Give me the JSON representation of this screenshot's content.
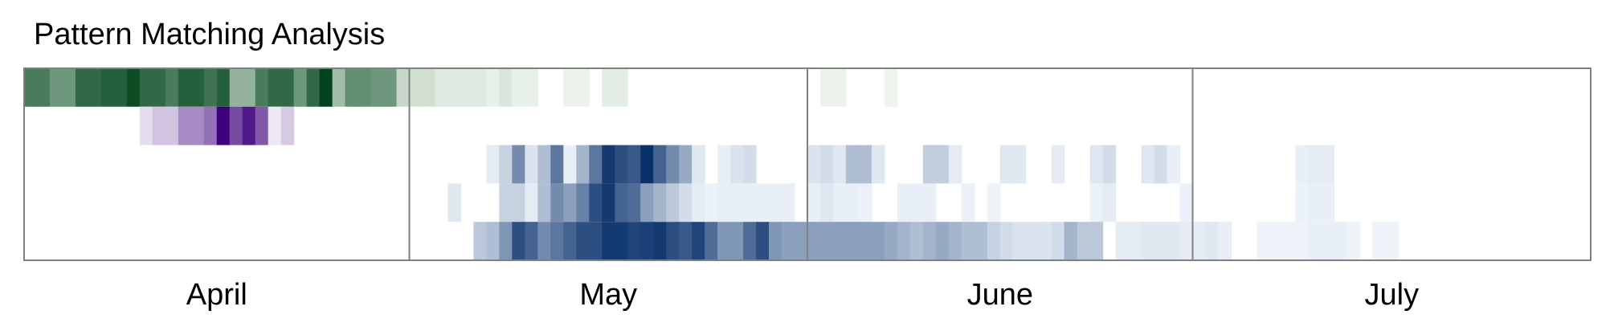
{
  "chart_data": {
    "type": "heatmap",
    "title": "Pattern Matching Analysis",
    "x_start": "2024-04-01",
    "x_end": "2024-07-31",
    "month_labels": [
      "April",
      "May",
      "June",
      "July"
    ],
    "month_boundaries": [
      "2024-05-01",
      "2024-06-01",
      "2024-07-01"
    ],
    "colormaps": {
      "greens": [
        "#f7fcf5",
        "#00441b"
      ],
      "purples": [
        "#fcfbfd",
        "#3f007d"
      ],
      "blues": [
        "#f7fbff",
        "#08306b"
      ]
    },
    "rows": [
      {
        "colormap": "greens",
        "cells": [
          [
            "2024-04-01",
            0.7
          ],
          [
            "2024-04-02",
            0.7
          ],
          [
            "2024-04-03",
            0.55
          ],
          [
            "2024-04-04",
            0.55
          ],
          [
            "2024-04-05",
            0.8
          ],
          [
            "2024-04-06",
            0.8
          ],
          [
            "2024-04-07",
            0.85
          ],
          [
            "2024-04-08",
            0.85
          ],
          [
            "2024-04-09",
            0.95
          ],
          [
            "2024-04-10",
            0.8
          ],
          [
            "2024-04-11",
            0.8
          ],
          [
            "2024-04-12",
            0.7
          ],
          [
            "2024-04-13",
            0.85
          ],
          [
            "2024-04-14",
            0.85
          ],
          [
            "2024-04-15",
            0.75
          ],
          [
            "2024-04-16",
            0.85
          ],
          [
            "2024-04-17",
            0.4
          ],
          [
            "2024-04-18",
            0.4
          ],
          [
            "2024-04-19",
            0.7
          ],
          [
            "2024-04-20",
            0.8
          ],
          [
            "2024-04-21",
            0.8
          ],
          [
            "2024-04-22",
            0.55
          ],
          [
            "2024-04-23",
            0.8
          ],
          [
            "2024-04-24",
            1.0
          ],
          [
            "2024-04-25",
            0.35
          ],
          [
            "2024-04-26",
            0.6
          ],
          [
            "2024-04-27",
            0.6
          ],
          [
            "2024-04-28",
            0.55
          ],
          [
            "2024-04-29",
            0.55
          ],
          [
            "2024-04-30",
            0.2
          ],
          [
            "2024-05-01",
            0.15
          ],
          [
            "2024-05-02",
            0.15
          ],
          [
            "2024-05-03",
            0.1
          ],
          [
            "2024-05-04",
            0.1
          ],
          [
            "2024-05-05",
            0.1
          ],
          [
            "2024-05-06",
            0.1
          ],
          [
            "2024-05-07",
            0.06
          ],
          [
            "2024-05-08",
            0.12
          ],
          [
            "2024-05-09",
            0.06
          ],
          [
            "2024-05-10",
            0.06
          ],
          [
            "2024-05-13",
            0.05
          ],
          [
            "2024-05-14",
            0.05
          ],
          [
            "2024-05-16",
            0.08
          ],
          [
            "2024-05-17",
            0.08
          ],
          [
            "2024-06-02",
            0.05
          ],
          [
            "2024-06-03",
            0.05
          ],
          [
            "2024-06-07",
            0.04
          ]
        ]
      },
      {
        "colormap": "purples",
        "cells": [
          [
            "2024-04-10",
            0.12
          ],
          [
            "2024-04-11",
            0.22
          ],
          [
            "2024-04-12",
            0.22
          ],
          [
            "2024-04-13",
            0.45
          ],
          [
            "2024-04-14",
            0.45
          ],
          [
            "2024-04-15",
            0.55
          ],
          [
            "2024-04-16",
            1.0
          ],
          [
            "2024-04-17",
            0.7
          ],
          [
            "2024-04-18",
            0.9
          ],
          [
            "2024-04-19",
            0.65
          ],
          [
            "2024-04-20",
            0.08
          ],
          [
            "2024-04-21",
            0.2
          ]
        ]
      },
      {
        "colormap": "blues",
        "cells": [
          [
            "2024-05-07",
            0.08
          ],
          [
            "2024-05-08",
            0.2
          ],
          [
            "2024-05-09",
            0.55
          ],
          [
            "2024-05-10",
            0.12
          ],
          [
            "2024-05-11",
            0.3
          ],
          [
            "2024-05-12",
            0.65
          ],
          [
            "2024-05-13",
            0.06
          ],
          [
            "2024-05-14",
            0.35
          ],
          [
            "2024-05-15",
            0.65
          ],
          [
            "2024-05-16",
            0.95
          ],
          [
            "2024-05-17",
            0.85
          ],
          [
            "2024-05-18",
            0.8
          ],
          [
            "2024-05-19",
            1.0
          ],
          [
            "2024-05-20",
            0.75
          ],
          [
            "2024-05-21",
            0.55
          ],
          [
            "2024-05-22",
            0.4
          ],
          [
            "2024-05-23",
            0.1
          ],
          [
            "2024-05-25",
            0.06
          ],
          [
            "2024-05-26",
            0.12
          ],
          [
            "2024-05-27",
            0.15
          ],
          [
            "2024-06-01",
            0.12
          ],
          [
            "2024-06-02",
            0.15
          ],
          [
            "2024-06-03",
            0.1
          ],
          [
            "2024-06-04",
            0.3
          ],
          [
            "2024-06-05",
            0.3
          ],
          [
            "2024-06-06",
            0.1
          ],
          [
            "2024-06-10",
            0.22
          ],
          [
            "2024-06-11",
            0.22
          ],
          [
            "2024-06-12",
            0.08
          ],
          [
            "2024-06-16",
            0.1
          ],
          [
            "2024-06-17",
            0.1
          ],
          [
            "2024-06-20",
            0.08
          ],
          [
            "2024-06-23",
            0.1
          ],
          [
            "2024-06-24",
            0.15
          ],
          [
            "2024-06-27",
            0.1
          ],
          [
            "2024-06-28",
            0.15
          ],
          [
            "2024-06-29",
            0.06
          ],
          [
            "2024-07-09",
            0.06
          ],
          [
            "2024-07-10",
            0.08
          ],
          [
            "2024-07-11",
            0.08
          ]
        ]
      },
      {
        "colormap": "blues",
        "cells": [
          [
            "2024-05-04",
            0.1
          ],
          [
            "2024-05-08",
            0.2
          ],
          [
            "2024-05-09",
            0.2
          ],
          [
            "2024-05-10",
            0.08
          ],
          [
            "2024-05-11",
            0.3
          ],
          [
            "2024-05-12",
            0.55
          ],
          [
            "2024-05-13",
            0.45
          ],
          [
            "2024-05-14",
            0.6
          ],
          [
            "2024-05-15",
            0.85
          ],
          [
            "2024-05-16",
            0.95
          ],
          [
            "2024-05-17",
            0.75
          ],
          [
            "2024-05-18",
            0.7
          ],
          [
            "2024-05-19",
            0.45
          ],
          [
            "2024-05-20",
            0.35
          ],
          [
            "2024-05-21",
            0.25
          ],
          [
            "2024-05-22",
            0.15
          ],
          [
            "2024-05-23",
            0.08
          ],
          [
            "2024-05-24",
            0.05
          ],
          [
            "2024-05-25",
            0.06
          ],
          [
            "2024-05-26",
            0.06
          ],
          [
            "2024-05-27",
            0.06
          ],
          [
            "2024-05-28",
            0.06
          ],
          [
            "2024-05-29",
            0.06
          ],
          [
            "2024-05-30",
            0.06
          ],
          [
            "2024-06-01",
            0.06
          ],
          [
            "2024-06-02",
            0.1
          ],
          [
            "2024-06-03",
            0.06
          ],
          [
            "2024-06-04",
            0.06
          ],
          [
            "2024-06-05",
            0.05
          ],
          [
            "2024-06-08",
            0.06
          ],
          [
            "2024-06-09",
            0.06
          ],
          [
            "2024-06-10",
            0.06
          ],
          [
            "2024-06-13",
            0.05
          ],
          [
            "2024-06-15",
            0.04
          ],
          [
            "2024-06-23",
            0.05
          ],
          [
            "2024-06-24",
            0.08
          ],
          [
            "2024-06-30",
            0.05
          ],
          [
            "2024-07-09",
            0.05
          ],
          [
            "2024-07-10",
            0.06
          ],
          [
            "2024-07-11",
            0.06
          ]
        ]
      },
      {
        "colormap": "blues",
        "cells": [
          [
            "2024-05-06",
            0.25
          ],
          [
            "2024-05-07",
            0.3
          ],
          [
            "2024-05-08",
            0.5
          ],
          [
            "2024-05-09",
            0.85
          ],
          [
            "2024-05-10",
            0.75
          ],
          [
            "2024-05-11",
            0.55
          ],
          [
            "2024-05-12",
            0.65
          ],
          [
            "2024-05-13",
            0.75
          ],
          [
            "2024-05-14",
            0.85
          ],
          [
            "2024-05-15",
            0.85
          ],
          [
            "2024-05-16",
            0.95
          ],
          [
            "2024-05-17",
            0.95
          ],
          [
            "2024-05-18",
            0.9
          ],
          [
            "2024-05-19",
            0.92
          ],
          [
            "2024-05-20",
            0.95
          ],
          [
            "2024-05-21",
            0.85
          ],
          [
            "2024-05-22",
            0.8
          ],
          [
            "2024-05-23",
            0.9
          ],
          [
            "2024-05-24",
            0.7
          ],
          [
            "2024-05-25",
            0.5
          ],
          [
            "2024-05-26",
            0.5
          ],
          [
            "2024-05-27",
            0.7
          ],
          [
            "2024-05-28",
            0.85
          ],
          [
            "2024-05-29",
            0.5
          ],
          [
            "2024-05-30",
            0.45
          ],
          [
            "2024-05-31",
            0.45
          ],
          [
            "2024-06-01",
            0.45
          ],
          [
            "2024-06-02",
            0.45
          ],
          [
            "2024-06-03",
            0.45
          ],
          [
            "2024-06-04",
            0.45
          ],
          [
            "2024-06-05",
            0.45
          ],
          [
            "2024-06-06",
            0.45
          ],
          [
            "2024-06-07",
            0.4
          ],
          [
            "2024-06-08",
            0.35
          ],
          [
            "2024-06-09",
            0.3
          ],
          [
            "2024-06-10",
            0.35
          ],
          [
            "2024-06-11",
            0.4
          ],
          [
            "2024-06-12",
            0.35
          ],
          [
            "2024-06-13",
            0.3
          ],
          [
            "2024-06-14",
            0.3
          ],
          [
            "2024-06-15",
            0.2
          ],
          [
            "2024-06-16",
            0.15
          ],
          [
            "2024-06-17",
            0.12
          ],
          [
            "2024-06-18",
            0.12
          ],
          [
            "2024-06-19",
            0.12
          ],
          [
            "2024-06-20",
            0.15
          ],
          [
            "2024-06-21",
            0.35
          ],
          [
            "2024-06-22",
            0.25
          ],
          [
            "2024-06-23",
            0.25
          ],
          [
            "2024-06-25",
            0.08
          ],
          [
            "2024-06-26",
            0.08
          ],
          [
            "2024-06-27",
            0.1
          ],
          [
            "2024-06-28",
            0.1
          ],
          [
            "2024-06-29",
            0.1
          ],
          [
            "2024-06-30",
            0.08
          ],
          [
            "2024-07-01",
            0.08
          ],
          [
            "2024-07-02",
            0.1
          ],
          [
            "2024-07-03",
            0.06
          ],
          [
            "2024-07-06",
            0.04
          ],
          [
            "2024-07-07",
            0.04
          ],
          [
            "2024-07-08",
            0.04
          ],
          [
            "2024-07-09",
            0.04
          ],
          [
            "2024-07-10",
            0.06
          ],
          [
            "2024-07-11",
            0.06
          ],
          [
            "2024-07-12",
            0.06
          ],
          [
            "2024-07-13",
            0.04
          ],
          [
            "2024-07-15",
            0.04
          ],
          [
            "2024-07-16",
            0.04
          ]
        ]
      }
    ]
  }
}
